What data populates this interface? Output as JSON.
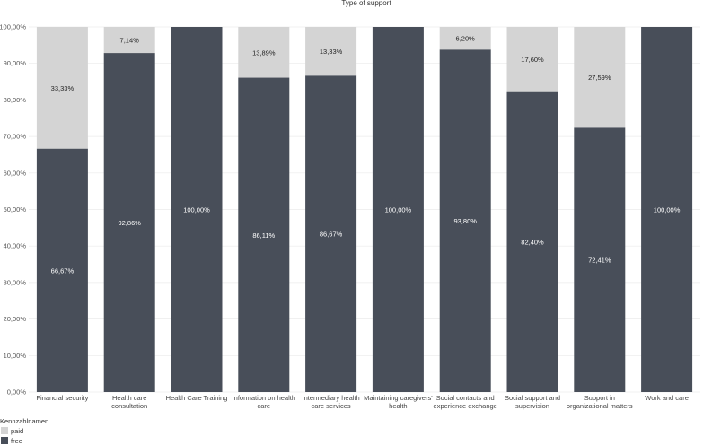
{
  "chart_data": {
    "type": "bar",
    "stacked": true,
    "title": "Type of support",
    "xlabel": "",
    "ylabel": "",
    "ylim": [
      0,
      100
    ],
    "yticks": [
      "0,00%",
      "10,00%",
      "20,00%",
      "30,00%",
      "40,00%",
      "50,00%",
      "60,00%",
      "70,00%",
      "80,00%",
      "90,00%",
      "100,00%"
    ],
    "grid": true,
    "legend": {
      "title": "Kennzahlnamen",
      "position": "bottom-left"
    },
    "categories": [
      [
        "Financial security"
      ],
      [
        "Health care",
        "consultation"
      ],
      [
        "Health Care Training"
      ],
      [
        "Information on health",
        "care"
      ],
      [
        "Intermediary health",
        "care services"
      ],
      [
        "Maintaining caregivers'",
        "health"
      ],
      [
        "Social contacts and",
        "experience exchange"
      ],
      [
        "Social support and",
        "supervision"
      ],
      [
        "Support in",
        "organizational matters"
      ],
      [
        "Work and care"
      ]
    ],
    "series": [
      {
        "name": "free",
        "color": "#484e59",
        "label_color": "#ffffff",
        "values": [
          66.67,
          92.86,
          100.0,
          86.11,
          86.67,
          100.0,
          93.8,
          82.4,
          72.41,
          100.0
        ],
        "labels": [
          "66,67%",
          "92,86%",
          "100,00%",
          "86,11%",
          "86,67%",
          "100,00%",
          "93,80%",
          "82,40%",
          "72,41%",
          "100,00%"
        ]
      },
      {
        "name": "paid",
        "color": "#d4d4d4",
        "label_color": "#222222",
        "values": [
          33.33,
          7.14,
          0,
          13.89,
          13.33,
          0,
          6.2,
          17.6,
          27.59,
          0
        ],
        "labels": [
          "33,33%",
          "7,14%",
          "",
          "13,89%",
          "13,33%",
          "",
          "6,20%",
          "17,60%",
          "27,59%",
          ""
        ]
      }
    ]
  }
}
